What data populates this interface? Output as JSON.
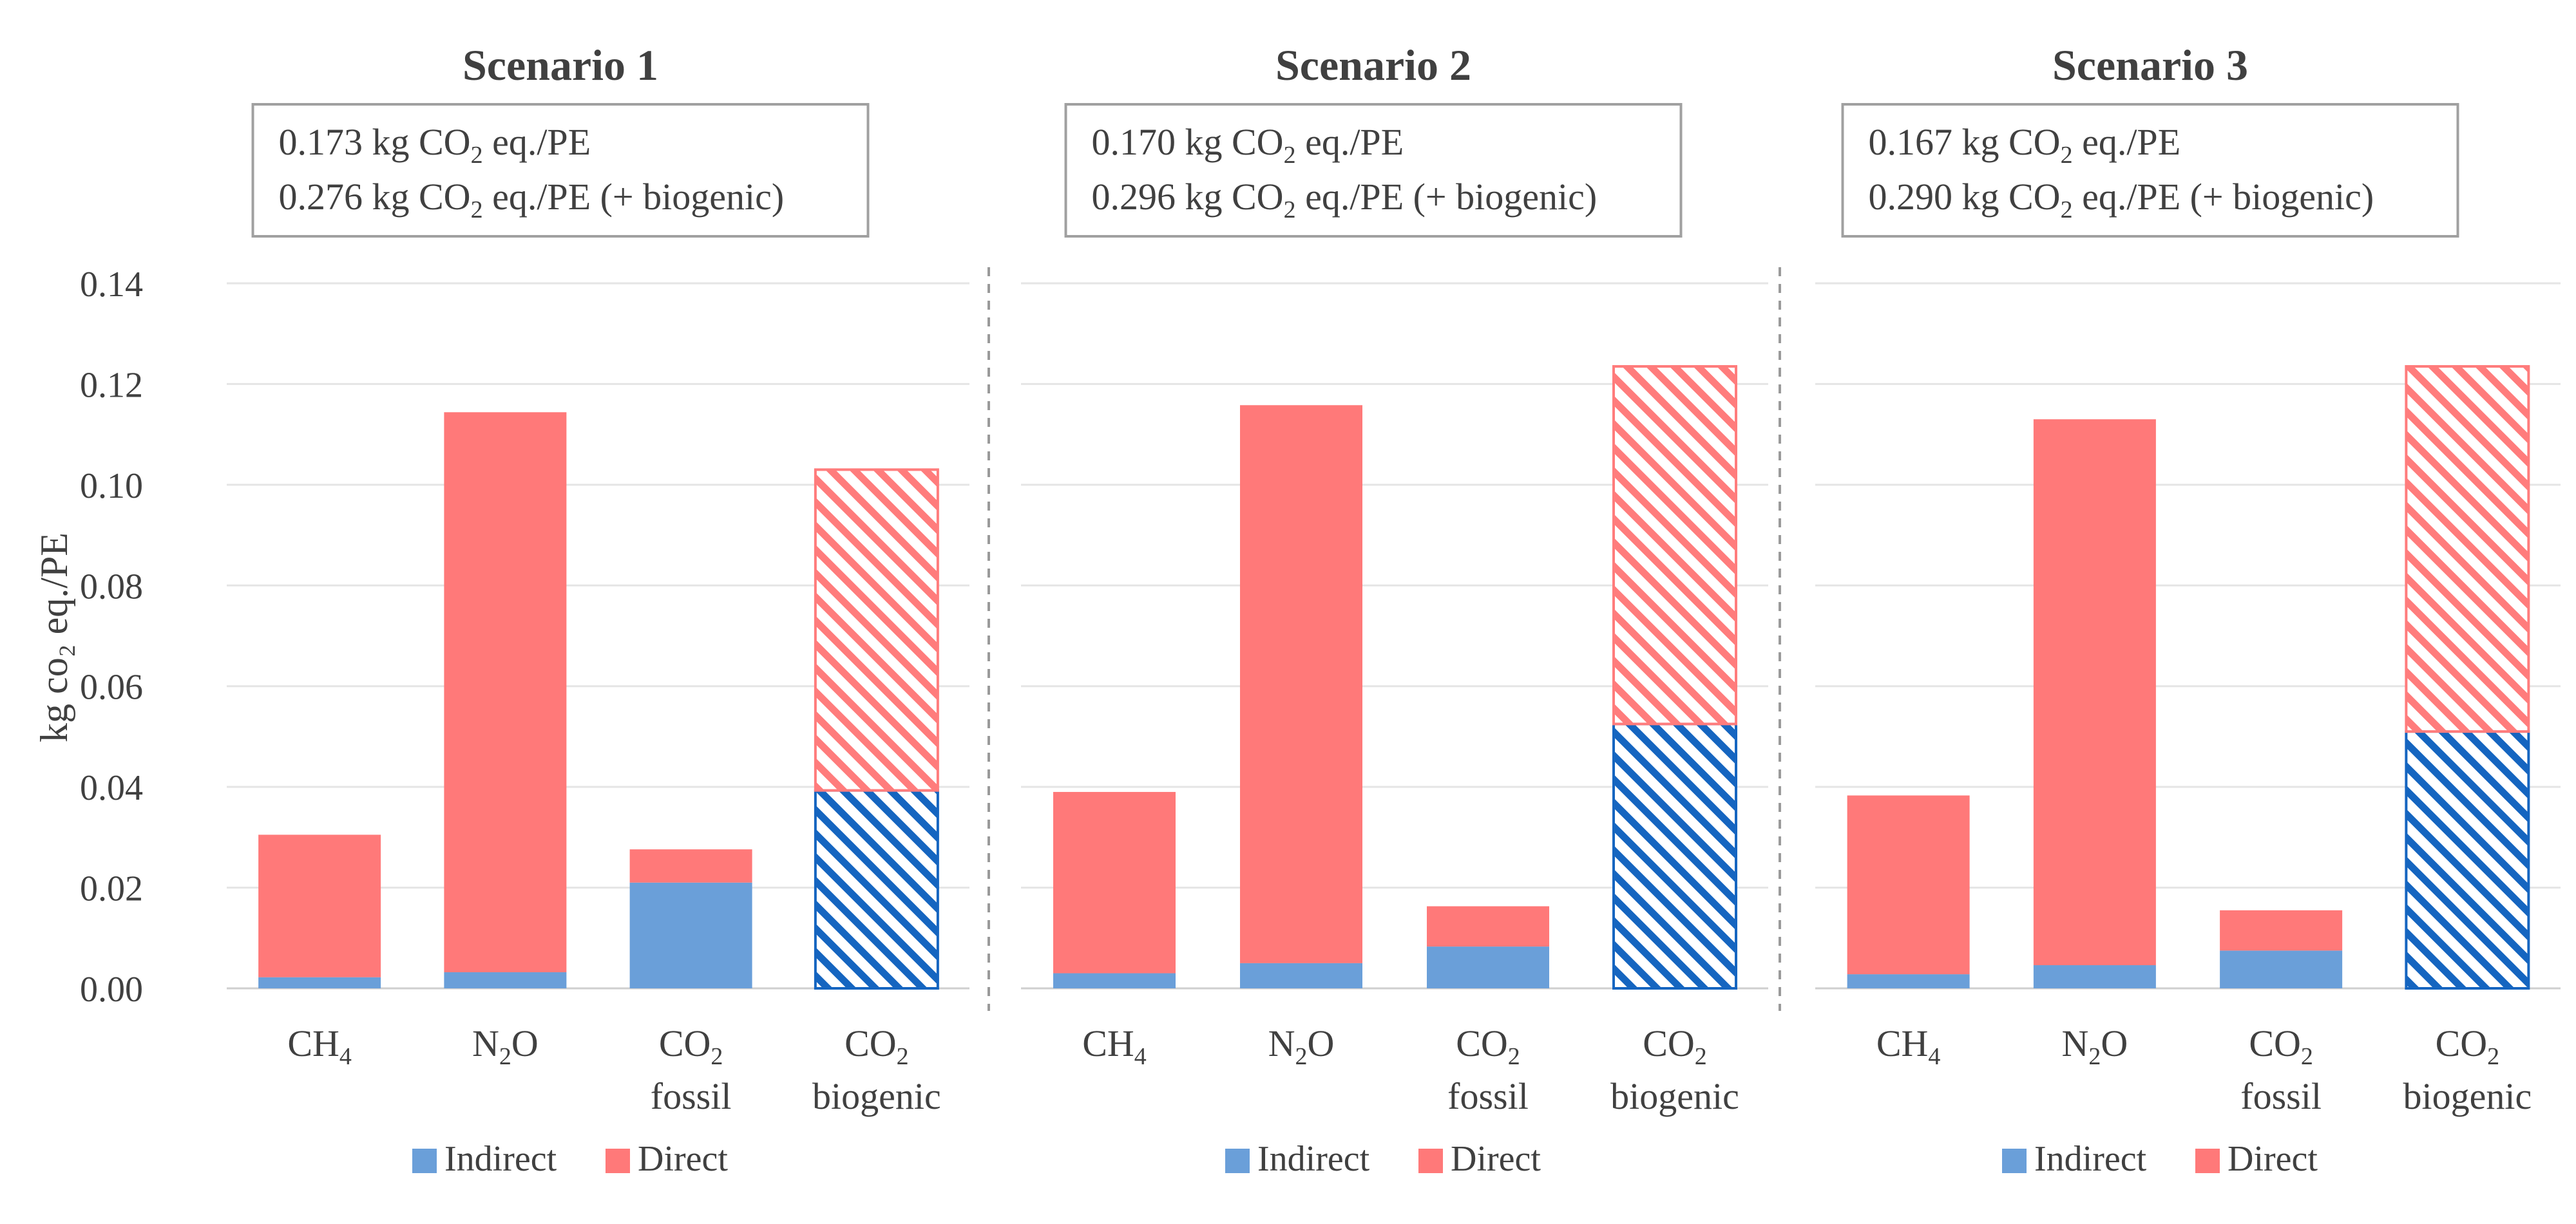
{
  "y_axis_label": "kg co₂ eq./PE",
  "legend": {
    "indirect": "Indirect",
    "direct": "Direct"
  },
  "colors": {
    "indirect": "#6a9fd9",
    "direct": "#ff7979",
    "indirect_hatch_line": "#1565c0",
    "direct_hatch_line": "#ff7c7c",
    "grid": "#e5e5e5",
    "divider": "#9a9a9a",
    "box_border": "#a0a0a0",
    "text": "#404040"
  },
  "panels": [
    {
      "title": "Scenario  1",
      "box_lines": [
        "0.173 kg CO₂ eq./PE",
        "0.276 kg CO₂ eq./PE (+ biogenic)"
      ]
    },
    {
      "title": "Scenario  2",
      "box_lines": [
        "0.170 kg CO₂ eq./PE",
        "0.296 kg CO₂ eq./PE (+ biogenic)"
      ]
    },
    {
      "title": "Scenario  3",
      "box_lines": [
        "0.167 kg CO₂ eq./PE",
        "0.290 kg CO₂ eq./PE (+ biogenic)"
      ]
    }
  ],
  "chart_data": {
    "type": "bar",
    "stacked": true,
    "ylim": [
      0,
      0.14
    ],
    "yticks": [
      "0.00",
      "0.02",
      "0.04",
      "0.06",
      "0.08",
      "0.10",
      "0.12",
      "0.14"
    ],
    "ylabel": "kg co₂ eq./PE",
    "grid": true,
    "legend_position": "bottom",
    "categories": [
      [
        "CH₄"
      ],
      [
        "N₂O"
      ],
      [
        "CO₂",
        "fossil"
      ],
      [
        "CO₂",
        "biogenic"
      ]
    ],
    "hatched_category_index": 3,
    "panels": [
      {
        "title": "Scenario  1",
        "series": [
          {
            "name": "Indirect",
            "values": [
              0.0022,
              0.0032,
              0.021,
              0.0393
            ]
          },
          {
            "name": "Direct",
            "values": [
              0.0283,
              0.1112,
              0.0066,
              0.0637
            ]
          }
        ]
      },
      {
        "title": "Scenario  2",
        "series": [
          {
            "name": "Indirect",
            "values": [
              0.003,
              0.005,
              0.0083,
              0.0525
            ]
          },
          {
            "name": "Direct",
            "values": [
              0.036,
              0.1108,
              0.008,
              0.071
            ]
          }
        ]
      },
      {
        "title": "Scenario  3",
        "series": [
          {
            "name": "Indirect",
            "values": [
              0.0028,
              0.0046,
              0.0075,
              0.051
            ]
          },
          {
            "name": "Direct",
            "values": [
              0.0355,
              0.1084,
              0.008,
              0.0725
            ]
          }
        ]
      }
    ]
  }
}
